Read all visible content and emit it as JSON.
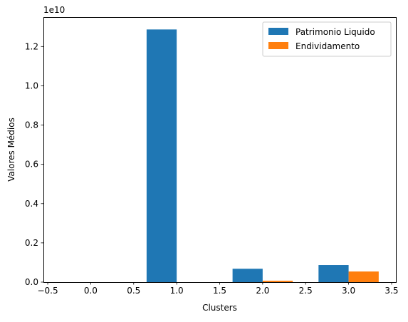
{
  "chart_data": {
    "type": "bar",
    "title": "",
    "xlabel": "Clusters",
    "ylabel": "Valores Médios",
    "y_offset_label": "1e10",
    "xlim": [
      -0.55,
      3.55
    ],
    "ylim": [
      0,
      1.35
    ],
    "y_scale_note": "values in units of 1e10",
    "x_ticks": [
      -0.5,
      0.0,
      0.5,
      1.0,
      1.5,
      2.0,
      2.5,
      3.0,
      3.5
    ],
    "x_tick_labels": [
      "−0.5",
      "0.0",
      "0.5",
      "1.0",
      "1.5",
      "2.0",
      "2.5",
      "3.0",
      "3.5"
    ],
    "y_ticks": [
      0.0,
      0.2,
      0.4,
      0.6,
      0.8,
      1.0,
      1.2
    ],
    "y_tick_labels": [
      "0.0",
      "0.2",
      "0.4",
      "0.6",
      "0.8",
      "1.0",
      "1.2"
    ],
    "bar_width": 0.35,
    "legend_position": "top-right",
    "categories": [
      0,
      1,
      2,
      3
    ],
    "series": [
      {
        "name": "Patrimonio Liquido",
        "color": "#1f77b4",
        "offset": -0.175,
        "values": [
          0.0,
          1.287,
          0.068,
          0.087
        ]
      },
      {
        "name": "Endividamento",
        "color": "#ff7f0e",
        "offset": 0.175,
        "values": [
          0.0,
          0.0,
          0.007,
          0.054
        ]
      }
    ]
  }
}
